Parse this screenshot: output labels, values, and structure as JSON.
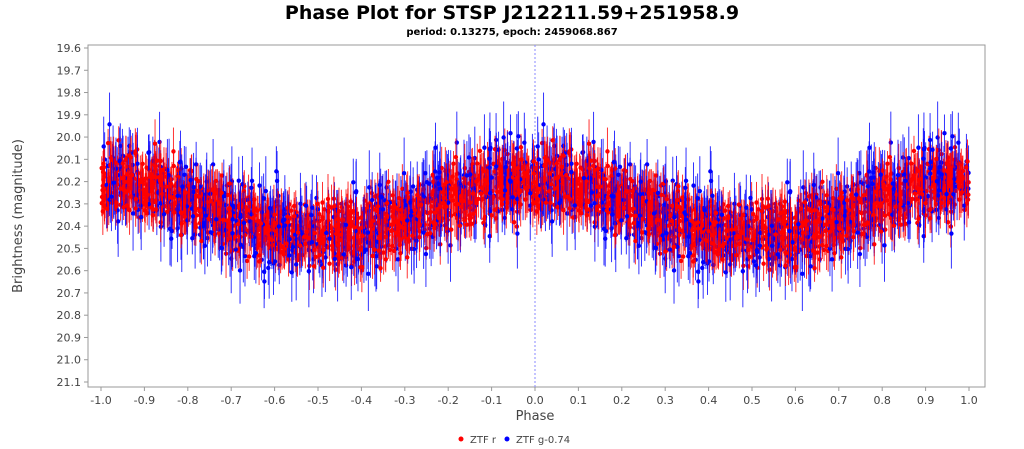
{
  "chart_data": {
    "type": "scatter",
    "title": "Phase Plot for STSP J212211.59+251958.9",
    "subtitle": "period: 0.13275, epoch: 2459068.867",
    "xlabel": "Phase",
    "ylabel": "Brightness (magnitude)",
    "xlim": [
      -1.05,
      1.07
    ],
    "ylim": [
      19.6,
      21.12
    ],
    "y_inverted": true,
    "xticks": [
      "-1.0",
      "-0.9",
      "-0.8",
      "-0.7",
      "-0.6",
      "-0.5",
      "-0.4",
      "-0.3",
      "-0.2",
      "-0.1",
      "0.0",
      "0.1",
      "0.2",
      "0.3",
      "0.4",
      "0.5",
      "0.6",
      "0.7",
      "0.8",
      "0.9",
      "1.0"
    ],
    "yticks": [
      "19.6",
      "19.7",
      "19.8",
      "19.9",
      "20.0",
      "20.1",
      "20.2",
      "20.3",
      "20.4",
      "20.5",
      "20.6",
      "20.7",
      "20.8",
      "20.9",
      "21.0",
      "21.1"
    ],
    "legend_position": "bottom",
    "series": [
      {
        "name": "ZTF r",
        "color": "#ff0000",
        "count": 1400,
        "mean_mag": 20.32,
        "amplitude": 0.12,
        "scatter": 0.12,
        "error": 0.08
      },
      {
        "name": "ZTF g-0.74",
        "color": "#0000ff",
        "count": 550,
        "mean_mag": 20.32,
        "amplitude": 0.12,
        "scatter": 0.16,
        "error": 0.12
      }
    ]
  }
}
